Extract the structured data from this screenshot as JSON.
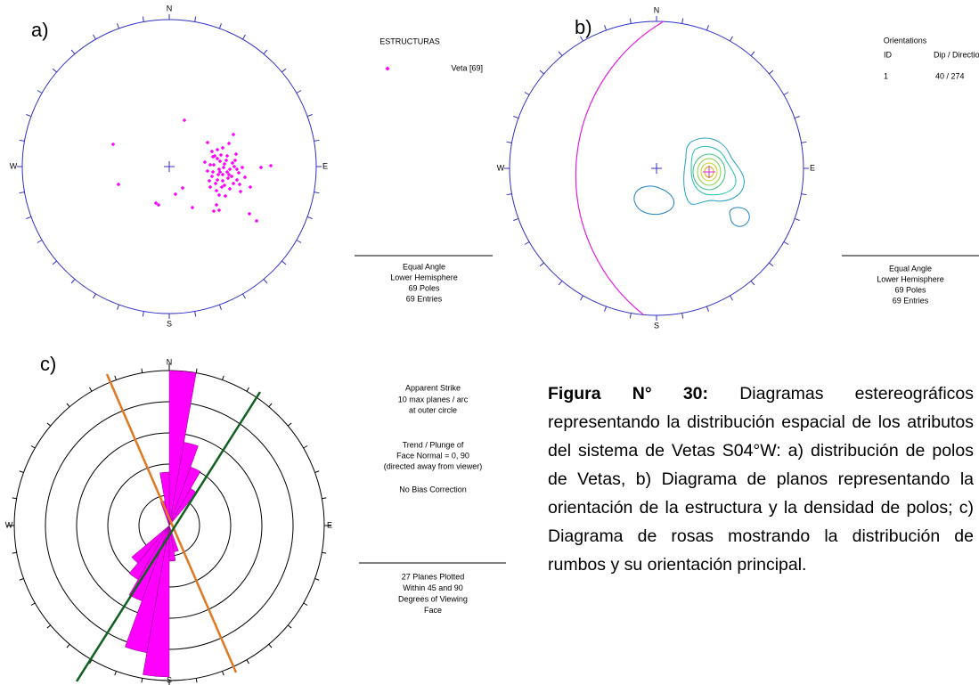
{
  "panels": [
    {
      "label": "a)",
      "compass": {
        "n": "N",
        "e": "E",
        "s": "S",
        "w": "W"
      },
      "legend": {
        "title": "ESTRUCTURAS",
        "entry": "Veta [69]"
      },
      "footer": [
        "Equal Angle",
        "Lower Hemisphere",
        "69 Poles",
        "69 Entries"
      ]
    },
    {
      "label": "b)",
      "compass": {
        "n": "N",
        "e": "E",
        "s": "S",
        "w": "W"
      },
      "legend": {
        "title": "Orientations",
        "headers": [
          "ID",
          "Dip / Direction"
        ],
        "row": [
          "1",
          "40  /  274"
        ]
      },
      "footer": [
        "Equal Angle",
        "Lower Hemisphere",
        "69 Poles",
        "69 Entries"
      ]
    },
    {
      "label": "c)",
      "compass": {
        "n": "N",
        "e": "E",
        "s": "S",
        "w": "W"
      },
      "legend": {
        "lines": [
          "Apparent Strike",
          "10 max planes / arc",
          "at outer circle",
          "",
          "Trend / Plunge of",
          "Face Normal =  0, 90",
          "(directed away from viewer)",
          "",
          "No Bias Correction"
        ]
      },
      "footer": [
        "27 Planes Plotted",
        "Within 45 and 90",
        "Degrees of Viewing",
        "Face"
      ]
    }
  ],
  "caption": {
    "label": "Figura N° 30:",
    "text": " Diagramas estereográficos representando la distribución espacial de los atributos del sistema de Vetas S04°W: a) distribución de polos de Vetas, b) Diagrama de planos representando la orientación de la estructura y la densidad de polos; c) Diagrama de rosas mostrando la distribución de rumbos y su orientación principal."
  }
}
